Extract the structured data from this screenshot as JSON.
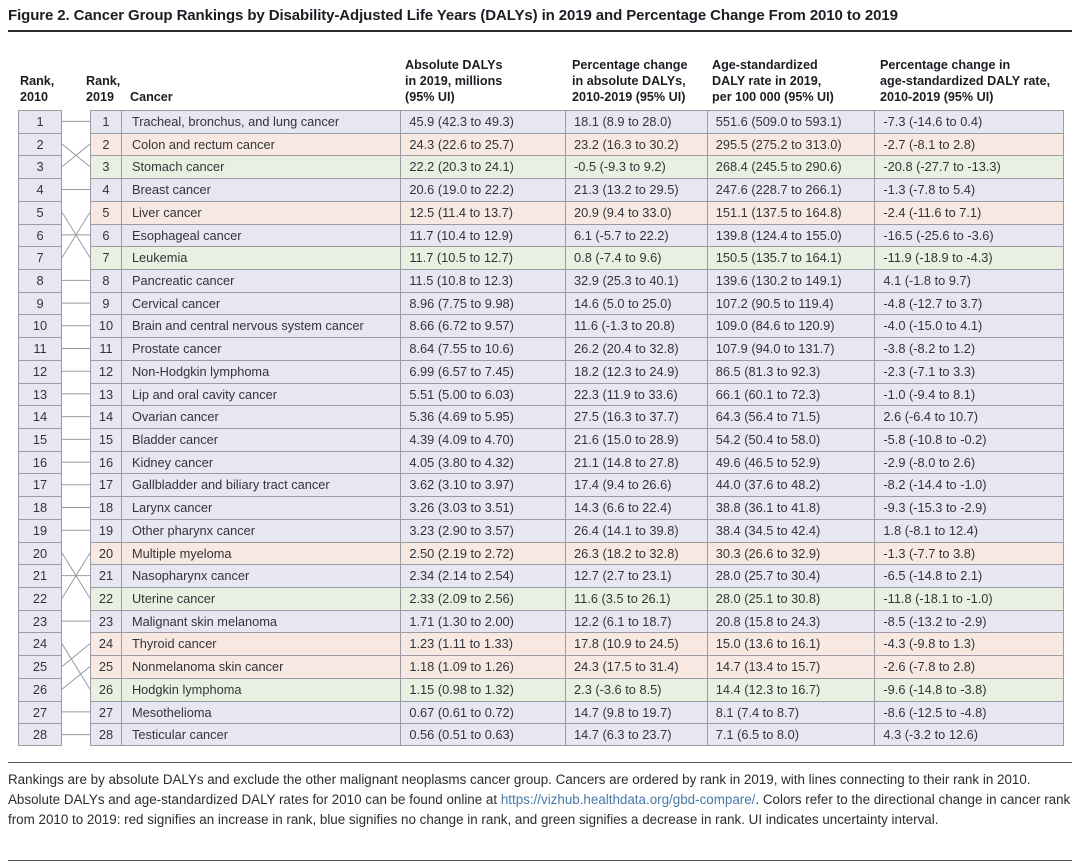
{
  "title": "Figure 2. Cancer Group Rankings by Disability-Adjusted Life Years (DALYs) in 2019 and Percentage Change From 2010 to 2019",
  "headers": {
    "rank2010": "Rank,\n2010",
    "rank2019": "Rank,\n2019",
    "cancer": "Cancer",
    "abs_dalys": "Absolute DALYs\nin 2019, millions\n(95% UI)",
    "pct_abs": "Percentage change\nin absolute DALYs,\n2010-2019 (95% UI)",
    "age_std": "Age-standardized\nDALY rate in 2019,\nper 100 000 (95% UI)",
    "pct_age_std": "Percentage change in\nage-standardized DALY rate,\n2010-2019 (95% UI)"
  },
  "colors": {
    "rank_increase_red": "#f7e9e2",
    "rank_no_change_blue": "#e7e7f1",
    "rank_decrease_green": "#eaf0e1",
    "border_gray": "#9b9ba3",
    "link_blue": "#4678a8"
  },
  "rows": [
    {
      "rank_2010_col": "1",
      "rank_2019": "1",
      "cancer": "Tracheal, bronchus, and lung cancer",
      "abs_dalys": "45.9 (42.3 to 49.3)",
      "pct_abs_change": "18.1 (8.9 to 28.0)",
      "age_std_rate": "551.6 (509.0 to 593.1)",
      "pct_age_std_change": "-7.3 (-14.6 to 0.4)",
      "rank_change": "same",
      "rank_in_2010": 1
    },
    {
      "rank_2010_col": "2",
      "rank_2019": "2",
      "cancer": "Colon and rectum cancer",
      "abs_dalys": "24.3 (22.6 to 25.7)",
      "pct_abs_change": "23.2 (16.3 to 30.2)",
      "age_std_rate": "295.5 (275.2 to 313.0)",
      "pct_age_std_change": "-2.7 (-8.1 to 2.8)",
      "rank_change": "up",
      "rank_in_2010": 3
    },
    {
      "rank_2010_col": "3",
      "rank_2019": "3",
      "cancer": "Stomach cancer",
      "abs_dalys": "22.2 (20.3 to 24.1)",
      "pct_abs_change": "-0.5 (-9.3 to 9.2)",
      "age_std_rate": "268.4 (245.5 to 290.6)",
      "pct_age_std_change": "-20.8 (-27.7 to -13.3)",
      "rank_change": "down",
      "rank_in_2010": 2
    },
    {
      "rank_2010_col": "4",
      "rank_2019": "4",
      "cancer": "Breast cancer",
      "abs_dalys": "20.6 (19.0 to 22.2)",
      "pct_abs_change": "21.3 (13.2 to 29.5)",
      "age_std_rate": "247.6 (228.7 to 266.1)",
      "pct_age_std_change": "-1.3 (-7.8 to 5.4)",
      "rank_change": "same",
      "rank_in_2010": 4
    },
    {
      "rank_2010_col": "5",
      "rank_2019": "5",
      "cancer": "Liver cancer",
      "abs_dalys": "12.5 (11.4 to 13.7)",
      "pct_abs_change": "20.9 (9.4 to 33.0)",
      "age_std_rate": "151.1 (137.5 to 164.8)",
      "pct_age_std_change": "-2.4 (-11.6 to 7.1)",
      "rank_change": "up",
      "rank_in_2010": 7
    },
    {
      "rank_2010_col": "6",
      "rank_2019": "6",
      "cancer": "Esophageal cancer",
      "abs_dalys": "11.7 (10.4 to 12.9)",
      "pct_abs_change": "6.1 (-5.7 to 22.2)",
      "age_std_rate": "139.8 (124.4 to 155.0)",
      "pct_age_std_change": "-16.5 (-25.6 to -3.6)",
      "rank_change": "same",
      "rank_in_2010": 6
    },
    {
      "rank_2010_col": "7",
      "rank_2019": "7",
      "cancer": "Leukemia",
      "abs_dalys": "11.7 (10.5 to 12.7)",
      "pct_abs_change": "0.8 (-7.4 to 9.6)",
      "age_std_rate": "150.5 (135.7 to 164.1)",
      "pct_age_std_change": "-11.9 (-18.9 to -4.3)",
      "rank_change": "down",
      "rank_in_2010": 5
    },
    {
      "rank_2010_col": "8",
      "rank_2019": "8",
      "cancer": "Pancreatic cancer",
      "abs_dalys": "11.5 (10.8 to 12.3)",
      "pct_abs_change": "32.9 (25.3 to 40.1)",
      "age_std_rate": "139.6 (130.2 to 149.1)",
      "pct_age_std_change": "4.1 (-1.8 to 9.7)",
      "rank_change": "same",
      "rank_in_2010": 8
    },
    {
      "rank_2010_col": "9",
      "rank_2019": "9",
      "cancer": "Cervical cancer",
      "abs_dalys": "8.96 (7.75 to 9.98)",
      "pct_abs_change": "14.6 (5.0 to 25.0)",
      "age_std_rate": "107.2 (90.5 to 119.4)",
      "pct_age_std_change": "-4.8 (-12.7 to 3.7)",
      "rank_change": "same",
      "rank_in_2010": 9
    },
    {
      "rank_2010_col": "10",
      "rank_2019": "10",
      "cancer": "Brain and central nervous system cancer",
      "abs_dalys": "8.66 (6.72 to 9.57)",
      "pct_abs_change": "11.6 (-1.3 to 20.8)",
      "age_std_rate": "109.0 (84.6 to 120.9)",
      "pct_age_std_change": "-4.0 (-15.0 to 4.1)",
      "rank_change": "same",
      "rank_in_2010": 10
    },
    {
      "rank_2010_col": "11",
      "rank_2019": "11",
      "cancer": "Prostate cancer",
      "abs_dalys": "8.64 (7.55 to 10.6)",
      "pct_abs_change": "26.2 (20.4 to 32.8)",
      "age_std_rate": "107.9 (94.0 to 131.7)",
      "pct_age_std_change": "-3.8 (-8.2 to 1.2)",
      "rank_change": "same",
      "rank_in_2010": 11
    },
    {
      "rank_2010_col": "12",
      "rank_2019": "12",
      "cancer": "Non-Hodgkin lymphoma",
      "abs_dalys": "6.99 (6.57 to 7.45)",
      "pct_abs_change": "18.2 (12.3 to 24.9)",
      "age_std_rate": "86.5 (81.3 to 92.3)",
      "pct_age_std_change": "-2.3 (-7.1 to 3.3)",
      "rank_change": "same",
      "rank_in_2010": 12
    },
    {
      "rank_2010_col": "13",
      "rank_2019": "13",
      "cancer": "Lip and oral cavity cancer",
      "abs_dalys": "5.51 (5.00 to 6.03)",
      "pct_abs_change": "22.3 (11.9 to 33.6)",
      "age_std_rate": "66.1 (60.1 to 72.3)",
      "pct_age_std_change": "-1.0 (-9.4 to 8.1)",
      "rank_change": "same",
      "rank_in_2010": 13
    },
    {
      "rank_2010_col": "14",
      "rank_2019": "14",
      "cancer": "Ovarian cancer",
      "abs_dalys": "5.36 (4.69 to 5.95)",
      "pct_abs_change": "27.5 (16.3 to 37.7)",
      "age_std_rate": "64.3 (56.4 to 71.5)",
      "pct_age_std_change": "2.6 (-6.4 to 10.7)",
      "rank_change": "same",
      "rank_in_2010": 14
    },
    {
      "rank_2010_col": "15",
      "rank_2019": "15",
      "cancer": "Bladder cancer",
      "abs_dalys": "4.39 (4.09 to 4.70)",
      "pct_abs_change": "21.6 (15.0 to 28.9)",
      "age_std_rate": "54.2 (50.4 to 58.0)",
      "pct_age_std_change": "-5.8 (-10.8 to -0.2)",
      "rank_change": "same",
      "rank_in_2010": 15
    },
    {
      "rank_2010_col": "16",
      "rank_2019": "16",
      "cancer": "Kidney cancer",
      "abs_dalys": "4.05 (3.80 to 4.32)",
      "pct_abs_change": "21.1 (14.8 to 27.8)",
      "age_std_rate": "49.6 (46.5 to 52.9)",
      "pct_age_std_change": "-2.9 (-8.0 to 2.6)",
      "rank_change": "same",
      "rank_in_2010": 16
    },
    {
      "rank_2010_col": "17",
      "rank_2019": "17",
      "cancer": "Gallbladder and biliary tract cancer",
      "abs_dalys": "3.62 (3.10 to 3.97)",
      "pct_abs_change": "17.4 (9.4 to 26.6)",
      "age_std_rate": "44.0 (37.6 to 48.2)",
      "pct_age_std_change": "-8.2 (-14.4 to -1.0)",
      "rank_change": "same",
      "rank_in_2010": 17
    },
    {
      "rank_2010_col": "18",
      "rank_2019": "18",
      "cancer": "Larynx cancer",
      "abs_dalys": "3.26 (3.03 to 3.51)",
      "pct_abs_change": "14.3 (6.6 to 22.4)",
      "age_std_rate": "38.8 (36.1 to 41.8)",
      "pct_age_std_change": "-9.3 (-15.3 to -2.9)",
      "rank_change": "same",
      "rank_in_2010": 18
    },
    {
      "rank_2010_col": "19",
      "rank_2019": "19",
      "cancer": "Other pharynx cancer",
      "abs_dalys": "3.23 (2.90 to 3.57)",
      "pct_abs_change": "26.4 (14.1 to 39.8)",
      "age_std_rate": "38.4 (34.5 to 42.4)",
      "pct_age_std_change": "1.8 (-8.1 to 12.4)",
      "rank_change": "same",
      "rank_in_2010": 19
    },
    {
      "rank_2010_col": "20",
      "rank_2019": "20",
      "cancer": "Multiple myeloma",
      "abs_dalys": "2.50 (2.19 to 2.72)",
      "pct_abs_change": "26.3 (18.2 to 32.8)",
      "age_std_rate": "30.3 (26.6 to 32.9)",
      "pct_age_std_change": "-1.3 (-7.7 to 3.8)",
      "rank_change": "up",
      "rank_in_2010": 22
    },
    {
      "rank_2010_col": "21",
      "rank_2019": "21",
      "cancer": "Nasopharynx cancer",
      "abs_dalys": "2.34 (2.14 to 2.54)",
      "pct_abs_change": "12.7 (2.7 to 23.1)",
      "age_std_rate": "28.0 (25.7 to 30.4)",
      "pct_age_std_change": "-6.5 (-14.8 to 2.1)",
      "rank_change": "same",
      "rank_in_2010": 21
    },
    {
      "rank_2010_col": "22",
      "rank_2019": "22",
      "cancer": "Uterine cancer",
      "abs_dalys": "2.33 (2.09 to 2.56)",
      "pct_abs_change": "11.6 (3.5 to 26.1)",
      "age_std_rate": "28.0 (25.1 to 30.8)",
      "pct_age_std_change": "-11.8 (-18.1 to -1.0)",
      "rank_change": "down",
      "rank_in_2010": 20
    },
    {
      "rank_2010_col": "23",
      "rank_2019": "23",
      "cancer": "Malignant skin melanoma",
      "abs_dalys": "1.71 (1.30 to 2.00)",
      "pct_abs_change": "12.2 (6.1 to 18.7)",
      "age_std_rate": "20.8 (15.8 to 24.3)",
      "pct_age_std_change": "-8.5 (-13.2 to -2.9)",
      "rank_change": "same",
      "rank_in_2010": 23
    },
    {
      "rank_2010_col": "24",
      "rank_2019": "24",
      "cancer": "Thyroid cancer",
      "abs_dalys": "1.23 (1.11 to 1.33)",
      "pct_abs_change": "17.8 (10.9 to 24.5)",
      "age_std_rate": "15.0 (13.6 to 16.1)",
      "pct_age_std_change": "-4.3 (-9.8 to 1.3)",
      "rank_change": "up",
      "rank_in_2010": 25
    },
    {
      "rank_2010_col": "25",
      "rank_2019": "25",
      "cancer": "Nonmelanoma skin cancer",
      "abs_dalys": "1.18 (1.09 to 1.26)",
      "pct_abs_change": "24.3 (17.5 to 31.4)",
      "age_std_rate": "14.7 (13.4 to 15.7)",
      "pct_age_std_change": "-2.6 (-7.8 to 2.8)",
      "rank_change": "up",
      "rank_in_2010": 26
    },
    {
      "rank_2010_col": "26",
      "rank_2019": "26",
      "cancer": "Hodgkin lymphoma",
      "abs_dalys": "1.15 (0.98 to 1.32)",
      "pct_abs_change": "2.3 (-3.6 to 8.5)",
      "age_std_rate": "14.4 (12.3 to 16.7)",
      "pct_age_std_change": "-9.6 (-14.8 to -3.8)",
      "rank_change": "down",
      "rank_in_2010": 24
    },
    {
      "rank_2010_col": "27",
      "rank_2019": "27",
      "cancer": "Mesothelioma",
      "abs_dalys": "0.67 (0.61 to 0.72)",
      "pct_abs_change": "14.7 (9.8 to 19.7)",
      "age_std_rate": "8.1 (7.4 to 8.7)",
      "pct_age_std_change": "-8.6 (-12.5 to -4.8)",
      "rank_change": "same",
      "rank_in_2010": 27
    },
    {
      "rank_2010_col": "28",
      "rank_2019": "28",
      "cancer": "Testicular cancer",
      "abs_dalys": "0.56 (0.51 to 0.63)",
      "pct_abs_change": "14.7 (6.3 to 23.7)",
      "age_std_rate": "7.1 (6.5 to 8.0)",
      "pct_age_std_change": "4.3 (-3.2 to 12.6)",
      "rank_change": "same",
      "rank_in_2010": 28
    }
  ],
  "footnote": {
    "text_before": "Rankings are by absolute DALYs and exclude the other malignant neoplasms cancer group. Cancers are ordered by rank in 2019, with lines connecting to their rank in 2010. Absolute DALYs and age-standardized DALY rates for 2010 can be found online at ",
    "link": "https://vizhub.healthdata.org/gbd-compare/",
    "text_after": ". Colors refer to the directional change in cancer rank from 2010 to 2019: red signifies an increase in rank, blue signifies no change in rank, and green signifies a decrease in rank. UI indicates uncertainty interval."
  }
}
